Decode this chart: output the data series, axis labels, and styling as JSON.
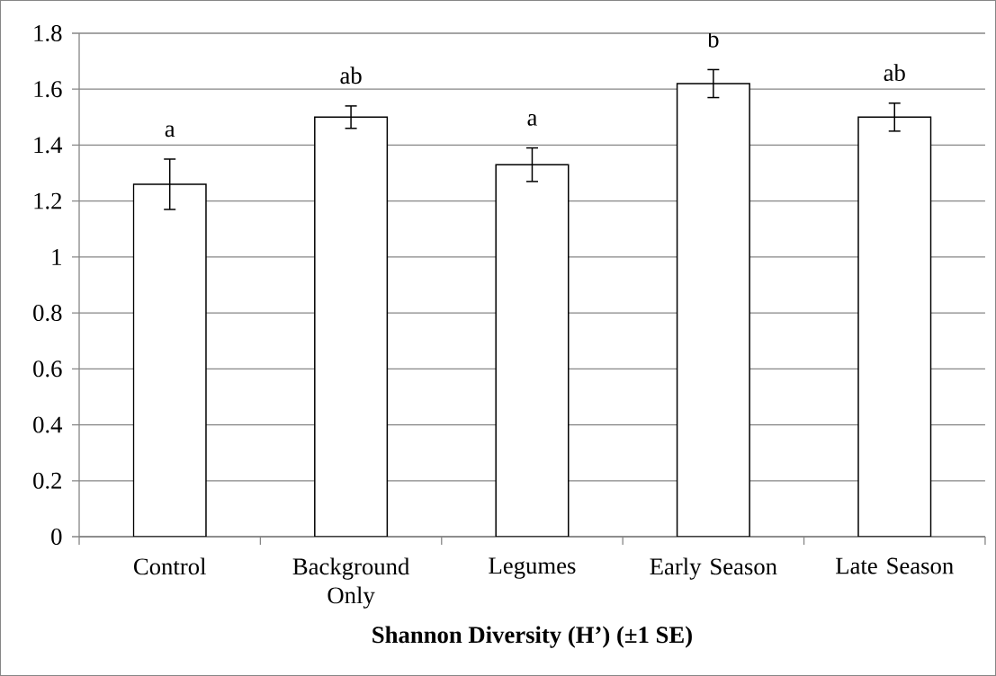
{
  "chart_data": {
    "type": "bar",
    "xlabel": "Shannon Diversity (H’) (±1 SE)",
    "categories": [
      "Control",
      "Background Only",
      "Legumes",
      "Early Season",
      "Late Season"
    ],
    "values": [
      1.26,
      1.5,
      1.33,
      1.62,
      1.5
    ],
    "errors": [
      0.09,
      0.04,
      0.06,
      0.05,
      0.05
    ],
    "color": "#ffffff",
    "ylim": [
      0,
      1.8
    ],
    "yticks": [
      0,
      0.2,
      0.4,
      0.6,
      0.8,
      1,
      1.2,
      1.4,
      1.6,
      1.8
    ],
    "grid": "y",
    "annotations": [
      "a",
      "ab",
      "a",
      "b",
      "ab"
    ]
  }
}
